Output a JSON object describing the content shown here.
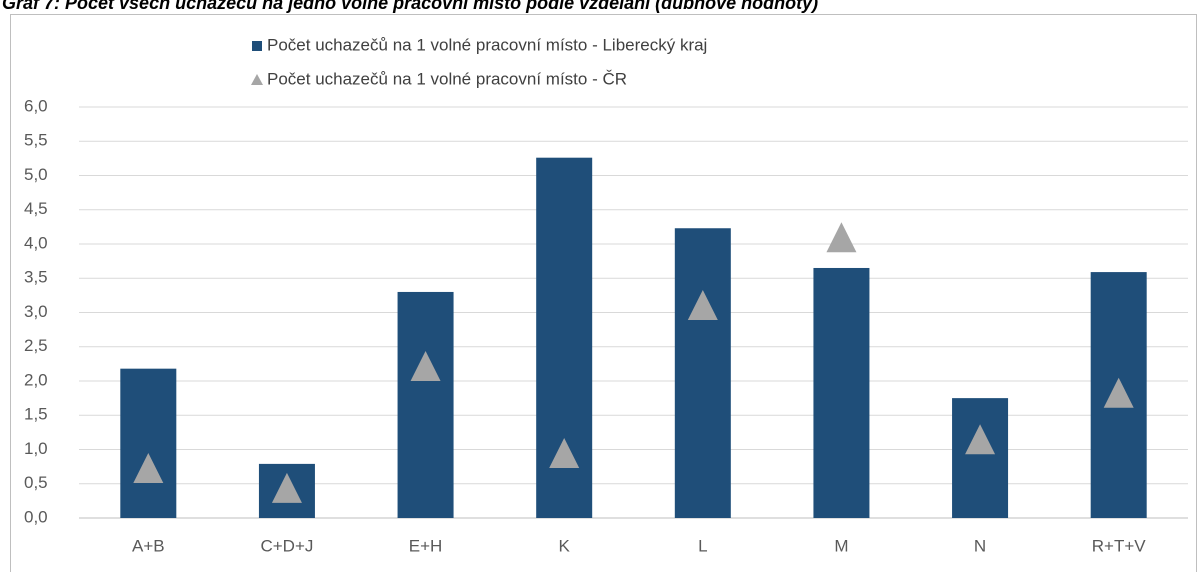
{
  "chart_data": {
    "type": "bar",
    "title": "Graf 7: Počet všech uchazečů na jedno volné pracovní místo podle vzdělání (dubnové hodnoty)",
    "categories": [
      "A+B",
      "C+D+J",
      "E+H",
      "K",
      "L",
      "M",
      "N",
      "R+T+V"
    ],
    "series": [
      {
        "name": "Počet uchazečů na 1 volné pracovní místo - Liberecký kraj",
        "color": "#1f4e79",
        "marker": "bar",
        "values": [
          2.18,
          0.79,
          3.3,
          5.26,
          4.23,
          3.65,
          1.75,
          3.59
        ]
      },
      {
        "name": "Počet uchazečů na 1 volné pracovní místo - ČR",
        "color": "#a6a6a6",
        "marker": "triangle",
        "values": [
          0.7,
          0.41,
          2.19,
          0.92,
          3.08,
          4.07,
          1.12,
          1.8
        ]
      }
    ],
    "ylim": [
      0,
      6
    ],
    "yticks": [
      {
        "value": 0,
        "label": "0,0"
      },
      {
        "value": 0.5,
        "label": "0,5"
      },
      {
        "value": 1,
        "label": "1,0"
      },
      {
        "value": 1.5,
        "label": "1,5"
      },
      {
        "value": 2,
        "label": "2,0"
      },
      {
        "value": 2.5,
        "label": "2,5"
      },
      {
        "value": 3,
        "label": "3,0"
      },
      {
        "value": 3.5,
        "label": "3,5"
      },
      {
        "value": 4,
        "label": "4,0"
      },
      {
        "value": 4.5,
        "label": "4,5"
      },
      {
        "value": 5,
        "label": "5,0"
      },
      {
        "value": 5.5,
        "label": "5,5"
      },
      {
        "value": 6,
        "label": "6,0"
      }
    ],
    "grid": true
  }
}
